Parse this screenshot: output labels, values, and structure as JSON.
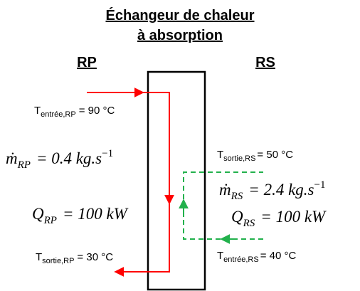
{
  "title": [
    "Échangeur de chaleur",
    "à absorption"
  ],
  "primary": {
    "label": "RP",
    "inlet": {
      "symbol": "T",
      "subscript": "entrée,RP",
      "text": "= 90 °C"
    },
    "flow": {
      "symbol": "ṁ",
      "subscript": "RP",
      "text": "= 0.4 kg.s",
      "superscript": "−1"
    },
    "power": {
      "symbol": "Q",
      "subscript": "RP",
      "text": "= 100 kW"
    },
    "outlet": {
      "symbol": "T",
      "subscript": "sortie,RP",
      "text": "= 30 °C"
    }
  },
  "secondary": {
    "label": "RS",
    "outlet": {
      "symbol": "T",
      "subscript": "sortie,RS",
      "text": "= 50 °C"
    },
    "flow": {
      "symbol": "ṁ",
      "subscript": "RS",
      "text": "= 2.4 kg.s",
      "superscript": "−1"
    },
    "power": {
      "symbol": "Q",
      "subscript": "RS",
      "text": "= 100 kW"
    },
    "inlet": {
      "symbol": "T",
      "subscript": "entrée,RS",
      "text": "= 40 °C"
    }
  }
}
